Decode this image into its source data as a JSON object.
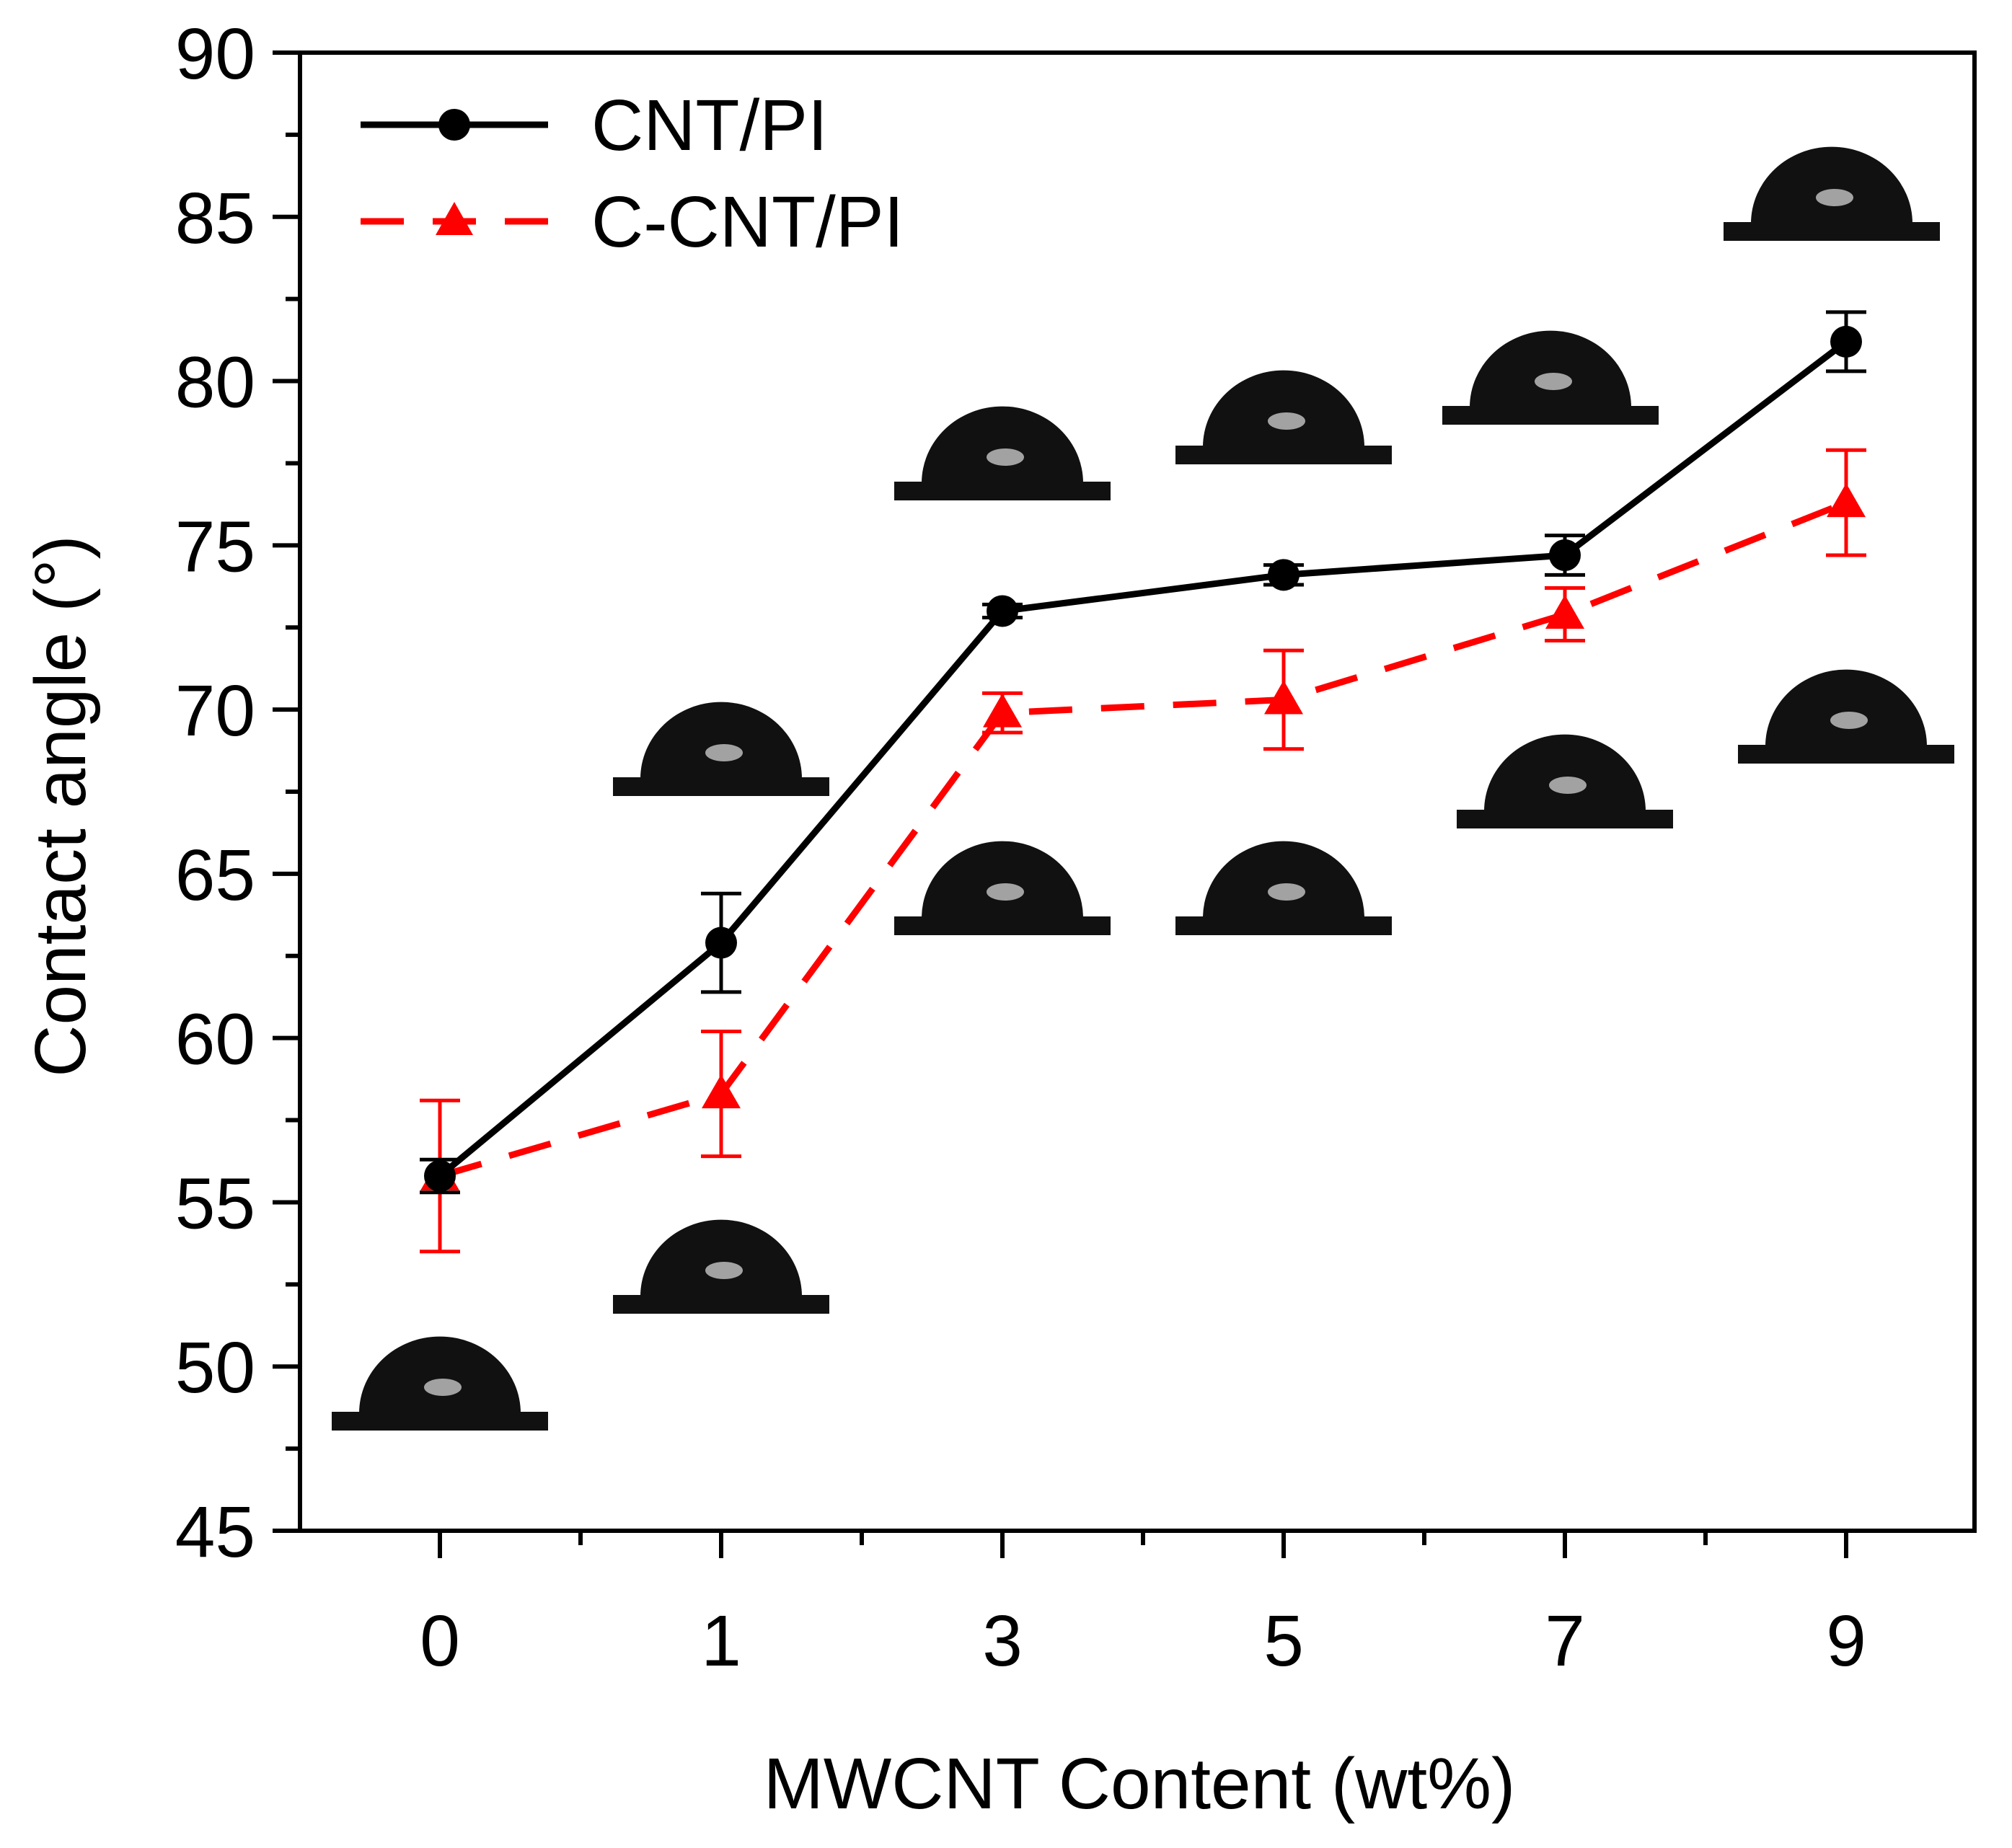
{
  "chart_data": {
    "type": "line",
    "title": "",
    "xlabel": "MWCNT Content (wt%)",
    "ylabel": "Contact angle (°)",
    "categories": [
      "0",
      "1",
      "3",
      "5",
      "7",
      "9"
    ],
    "x": [
      0,
      1,
      3,
      5,
      7,
      9
    ],
    "ylim": [
      45,
      90
    ],
    "yticks": [
      45,
      50,
      55,
      60,
      65,
      70,
      75,
      80,
      85,
      90
    ],
    "grid": false,
    "legend_position": "top-left",
    "series": [
      {
        "name": "CNT/PI",
        "color": "#000000",
        "line_style": "solid",
        "marker": "circle",
        "values": [
          55.8,
          62.9,
          73.0,
          74.1,
          74.7,
          81.2
        ],
        "errors": [
          0.5,
          1.5,
          0.2,
          0.3,
          0.6,
          0.9
        ]
      },
      {
        "name": "C-CNT/PI",
        "color": "#ff0000",
        "line_style": "dashed",
        "marker": "triangle",
        "values": [
          55.8,
          58.3,
          69.9,
          70.3,
          72.9,
          76.3
        ],
        "errors": [
          2.3,
          1.9,
          0.6,
          1.5,
          0.8,
          1.6
        ]
      }
    ]
  }
}
